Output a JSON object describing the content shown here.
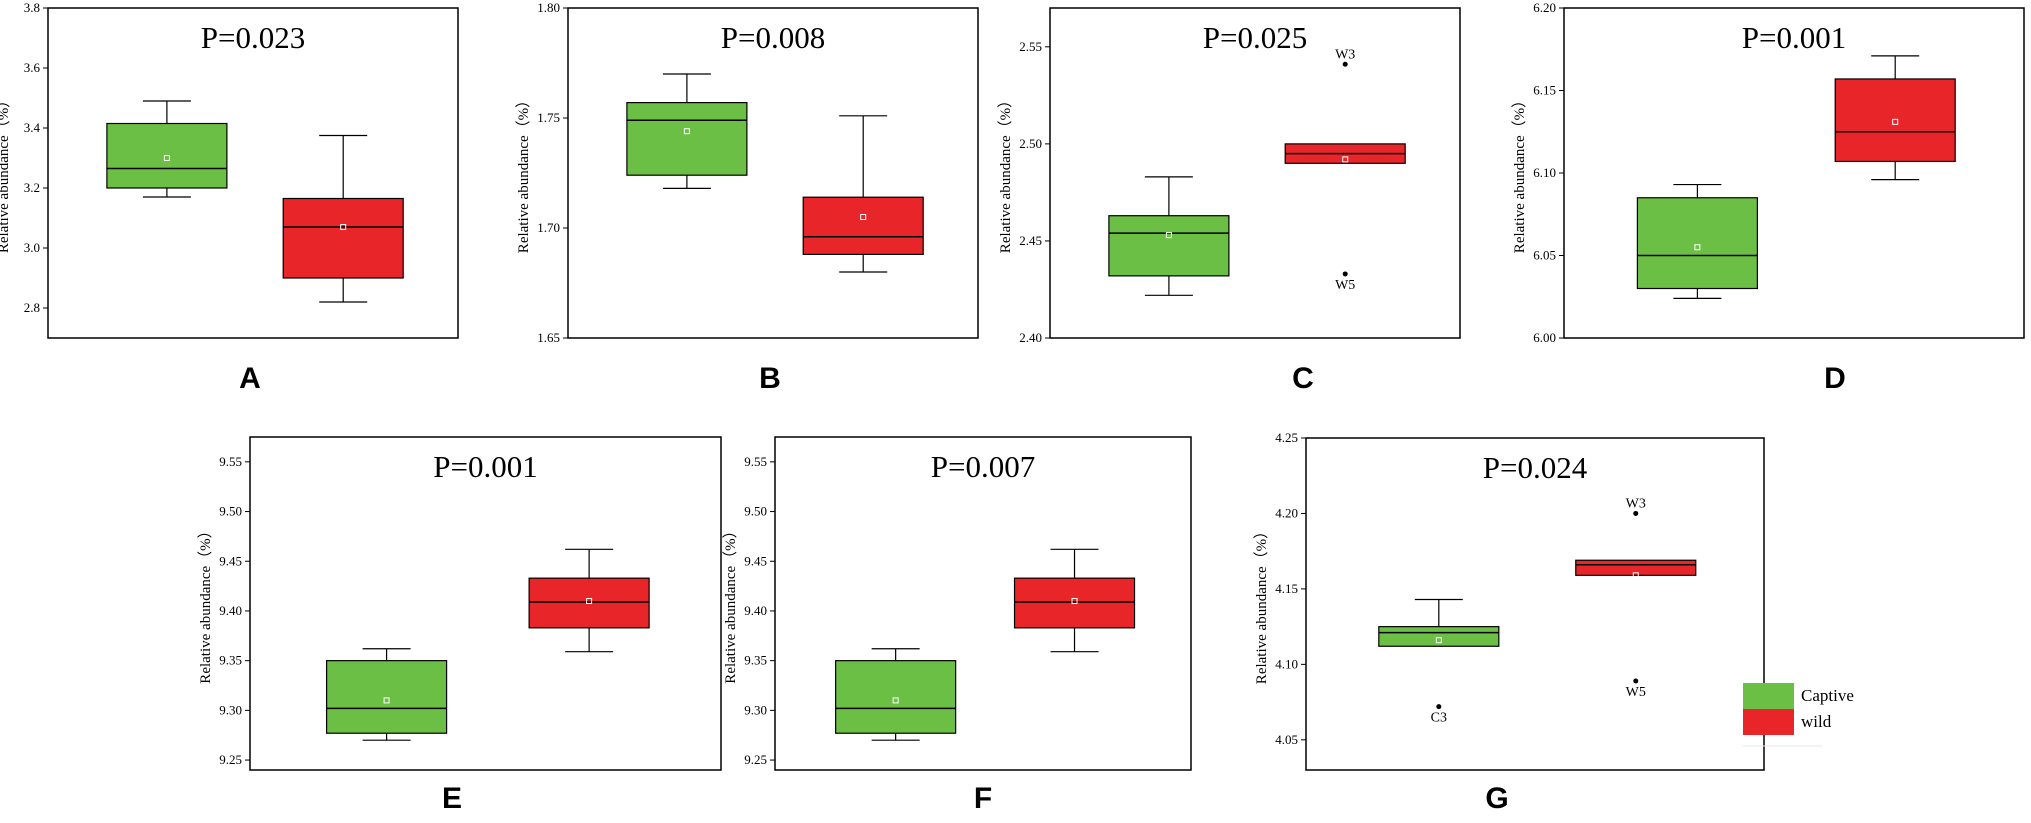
{
  "chart_data": [
    {
      "type": "box",
      "panel": "A",
      "title": "P=0.023",
      "ylabel": "Relative abundance（%）",
      "ylim": [
        2.7,
        3.8
      ],
      "yticks": [
        "2.8",
        "3.0",
        "3.2",
        "3.4",
        "3.6",
        "3.8"
      ],
      "groups": [
        {
          "name": "Captive",
          "whisker_low": 3.17,
          "q1": 3.2,
          "median": 3.265,
          "q3": 3.415,
          "whisker_high": 3.49,
          "mean": 3.3,
          "outliers": []
        },
        {
          "name": "wild",
          "whisker_low": 2.82,
          "q1": 2.9,
          "median": 3.07,
          "q3": 3.165,
          "whisker_high": 3.375,
          "mean": 3.07,
          "outliers": []
        }
      ]
    },
    {
      "type": "box",
      "panel": "B",
      "title": "P=0.008",
      "ylabel": "Relative abundance（%）",
      "ylim": [
        1.65,
        1.8
      ],
      "yticks": [
        "1.65",
        "1.70",
        "1.75",
        "1.80"
      ],
      "groups": [
        {
          "name": "Captive",
          "whisker_low": 1.718,
          "q1": 1.724,
          "median": 1.749,
          "q3": 1.757,
          "whisker_high": 1.77,
          "mean": 1.744,
          "outliers": []
        },
        {
          "name": "wild",
          "whisker_low": 1.68,
          "q1": 1.688,
          "median": 1.696,
          "q3": 1.714,
          "whisker_high": 1.751,
          "mean": 1.705,
          "outliers": []
        }
      ]
    },
    {
      "type": "box",
      "panel": "C",
      "title": "P=0.025",
      "ylabel": "Relative abundance（%）",
      "ylim": [
        2.4,
        2.57
      ],
      "yticks": [
        "2.40",
        "2.45",
        "2.50",
        "2.55"
      ],
      "groups": [
        {
          "name": "Captive",
          "whisker_low": 2.422,
          "q1": 2.432,
          "median": 2.454,
          "q3": 2.463,
          "whisker_high": 2.483,
          "mean": 2.453,
          "outliers": []
        },
        {
          "name": "wild",
          "whisker_low": 2.49,
          "q1": 2.49,
          "median": 2.495,
          "q3": 2.5,
          "whisker_high": 2.5,
          "mean": 2.492,
          "outliers": [
            {
              "value": 2.541,
              "label": "W3"
            },
            {
              "value": 2.433,
              "label": "W5"
            }
          ]
        }
      ]
    },
    {
      "type": "box",
      "panel": "D",
      "title": "P=0.001",
      "ylabel": "Relative abundance（%）",
      "ylim": [
        6.0,
        6.2
      ],
      "yticks": [
        "6.00",
        "6.05",
        "6.10",
        "6.15",
        "6.20"
      ],
      "groups": [
        {
          "name": "Captive",
          "whisker_low": 6.024,
          "q1": 6.03,
          "median": 6.05,
          "q3": 6.085,
          "whisker_high": 6.093,
          "mean": 6.055,
          "outliers": []
        },
        {
          "name": "wild",
          "whisker_low": 6.096,
          "q1": 6.107,
          "median": 6.125,
          "q3": 6.157,
          "whisker_high": 6.171,
          "mean": 6.131,
          "outliers": []
        }
      ]
    },
    {
      "type": "box",
      "panel": "E",
      "title": "P=0.001",
      "ylabel": "Relative abundance（%）",
      "ylim": [
        9.24,
        9.575
      ],
      "yticks": [
        "9.25",
        "9.30",
        "9.35",
        "9.40",
        "9.45",
        "9.50",
        "9.55"
      ],
      "groups": [
        {
          "name": "Captive",
          "whisker_low": 9.27,
          "q1": 9.277,
          "median": 9.302,
          "q3": 9.35,
          "whisker_high": 9.362,
          "mean": 9.31,
          "outliers": []
        },
        {
          "name": "wild",
          "whisker_low": 9.359,
          "q1": 9.383,
          "median": 9.409,
          "q3": 9.433,
          "whisker_high": 9.462,
          "mean": 9.41,
          "outliers": []
        }
      ]
    },
    {
      "type": "box",
      "panel": "F",
      "title": "P=0.007",
      "ylabel": "Relative abundance（%）",
      "ylim": [
        9.24,
        9.575
      ],
      "yticks": [
        "9.25",
        "9.30",
        "9.35",
        "9.40",
        "9.45",
        "9.50",
        "9.55"
      ],
      "groups": [
        {
          "name": "Captive",
          "whisker_low": 9.27,
          "q1": 9.277,
          "median": 9.302,
          "q3": 9.35,
          "whisker_high": 9.362,
          "mean": 9.31,
          "outliers": []
        },
        {
          "name": "wild",
          "whisker_low": 9.359,
          "q1": 9.383,
          "median": 9.409,
          "q3": 9.433,
          "whisker_high": 9.462,
          "mean": 9.41,
          "outliers": []
        }
      ]
    },
    {
      "type": "box",
      "panel": "G",
      "title": "P=0.024",
      "ylabel": "Relative abundance（%）",
      "ylim": [
        4.03,
        4.25
      ],
      "yticks": [
        "4.05",
        "4.10",
        "4.15",
        "4.20",
        "4.25"
      ],
      "groups": [
        {
          "name": "Captive",
          "whisker_low": 4.112,
          "q1": 4.112,
          "median": 4.121,
          "q3": 4.125,
          "whisker_high": 4.143,
          "mean": 4.116,
          "outliers": [
            {
              "value": 4.072,
              "label": "C3"
            }
          ]
        },
        {
          "name": "wild",
          "whisker_low": 4.159,
          "q1": 4.159,
          "median": 4.166,
          "q3": 4.169,
          "whisker_high": 4.169,
          "mean": 4.159,
          "outliers": [
            {
              "value": 4.2,
              "label": "W3"
            },
            {
              "value": 4.089,
              "label": "W5"
            }
          ]
        }
      ]
    }
  ],
  "legend": {
    "items": [
      {
        "label": "Captive",
        "color": "#6bbf45"
      },
      {
        "label": "wild",
        "color": "#e8262a"
      }
    ]
  },
  "colors": {
    "captive_fill": "#6bbf45",
    "wild_fill": "#e8262a",
    "mean_marker": "#ffffff"
  }
}
